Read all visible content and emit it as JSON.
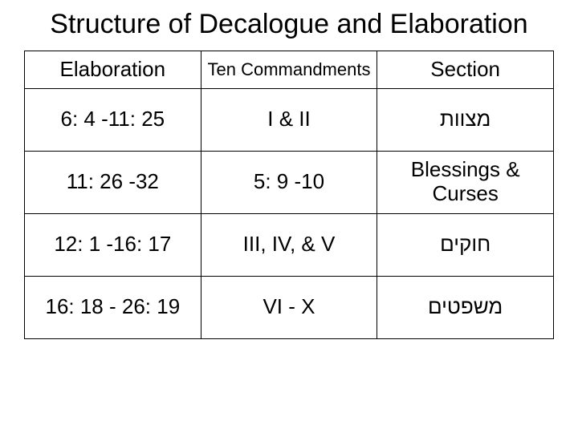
{
  "title": "Structure of Decalogue and Elaboration",
  "table": {
    "columns": [
      {
        "label": "Elaboration",
        "width": "33.3%"
      },
      {
        "label": "Ten Commandments",
        "width": "33.3%"
      },
      {
        "label": "Section",
        "width": "33.3%"
      }
    ],
    "rows": [
      [
        "6: 4 -11: 25",
        "I & II",
        "מצוות"
      ],
      [
        "11: 26 -32",
        "5: 9 -10",
        "Blessings & Curses"
      ],
      [
        "12: 1 -16: 17",
        "III, IV, & V",
        "חוקים"
      ],
      [
        "16: 18 - 26: 19",
        "VI - X",
        "משפטים"
      ]
    ],
    "border_color": "#000000",
    "background_color": "#ffffff",
    "title_fontsize": 34,
    "header_fontsize": 26,
    "header_mid_fontsize": 22,
    "cell_fontsize": 26,
    "text_color": "#000000"
  }
}
